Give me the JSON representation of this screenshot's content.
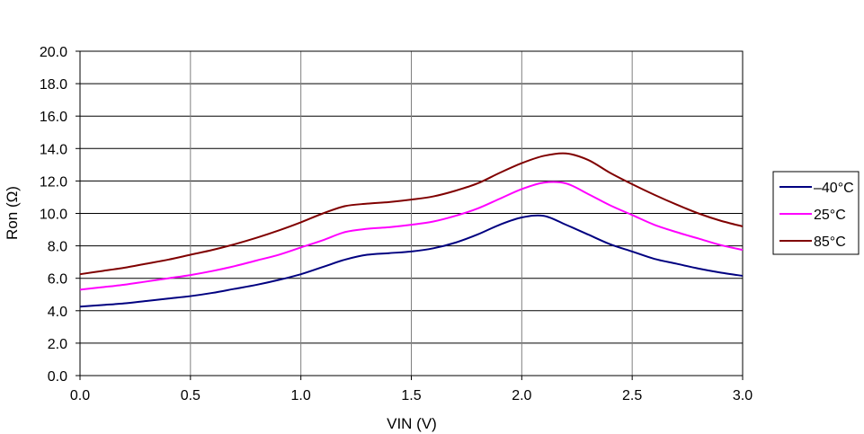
{
  "chart_data": {
    "type": "line",
    "title": "",
    "xlabel": "VIN (V)",
    "ylabel": "Ron (Ω)",
    "xlim": [
      0,
      3.0
    ],
    "ylim": [
      0,
      20.0
    ],
    "xticks": [
      "0.0",
      "0.5",
      "1.0",
      "1.5",
      "2.0",
      "2.5",
      "3.0"
    ],
    "yticks": [
      "0.0",
      "2.0",
      "4.0",
      "6.0",
      "8.0",
      "10.0",
      "12.0",
      "14.0",
      "16.0",
      "18.0",
      "20.0"
    ],
    "grid": true,
    "legend_position": "right",
    "x": [
      0,
      0.1,
      0.2,
      0.3,
      0.4,
      0.5,
      0.6,
      0.7,
      0.8,
      0.9,
      1.0,
      1.1,
      1.2,
      1.3,
      1.4,
      1.5,
      1.6,
      1.7,
      1.8,
      1.9,
      2.0,
      2.1,
      2.2,
      2.3,
      2.4,
      2.5,
      2.6,
      2.7,
      2.8,
      2.9,
      3.0
    ],
    "series": [
      {
        "name": "–40°C",
        "color": "#000080",
        "values": [
          4.25,
          4.35,
          4.45,
          4.6,
          4.75,
          4.9,
          5.1,
          5.35,
          5.6,
          5.9,
          6.25,
          6.7,
          7.15,
          7.45,
          7.55,
          7.65,
          7.85,
          8.2,
          8.7,
          9.3,
          9.75,
          9.85,
          9.3,
          8.7,
          8.1,
          7.65,
          7.2,
          6.9,
          6.6,
          6.35,
          6.15
        ]
      },
      {
        "name": "25°C",
        "color": "#FF00FF",
        "values": [
          5.3,
          5.45,
          5.6,
          5.8,
          6.0,
          6.2,
          6.45,
          6.75,
          7.1,
          7.45,
          7.9,
          8.35,
          8.85,
          9.05,
          9.15,
          9.3,
          9.5,
          9.85,
          10.3,
          10.9,
          11.5,
          11.9,
          11.85,
          11.2,
          10.5,
          9.9,
          9.3,
          8.85,
          8.45,
          8.05,
          7.75
        ]
      },
      {
        "name": "85°C",
        "color": "#800000",
        "values": [
          6.25,
          6.45,
          6.65,
          6.9,
          7.15,
          7.45,
          7.75,
          8.1,
          8.5,
          8.95,
          9.45,
          10.0,
          10.45,
          10.6,
          10.7,
          10.85,
          11.05,
          11.4,
          11.85,
          12.5,
          13.1,
          13.55,
          13.7,
          13.3,
          12.5,
          11.8,
          11.15,
          10.55,
          10.0,
          9.55,
          9.2
        ]
      }
    ]
  }
}
